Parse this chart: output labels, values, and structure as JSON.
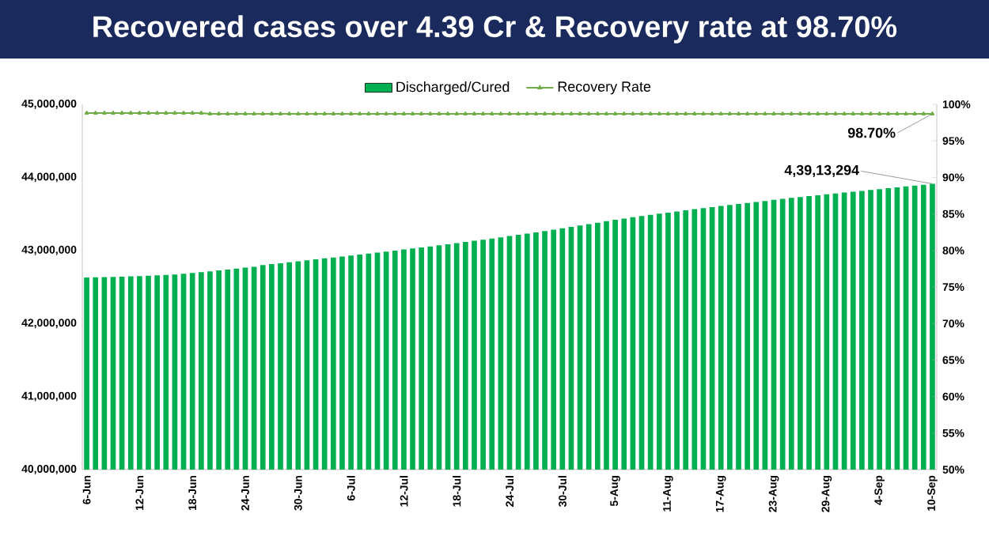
{
  "chart_data": {
    "type": "bar",
    "title": "Recovered cases over 4.39 Cr & Recovery rate at 98.70%",
    "categories": [
      "6-Jun",
      null,
      null,
      null,
      null,
      null,
      "12-Jun",
      null,
      null,
      null,
      null,
      null,
      "18-Jun",
      null,
      null,
      null,
      null,
      null,
      "24-Jun",
      null,
      null,
      null,
      null,
      null,
      "30-Jun",
      null,
      null,
      null,
      null,
      null,
      "6-Jul",
      null,
      null,
      null,
      null,
      null,
      "12-Jul",
      null,
      null,
      null,
      null,
      null,
      "18-Jul",
      null,
      null,
      null,
      null,
      null,
      "24-Jul",
      null,
      null,
      null,
      null,
      null,
      "30-Jul",
      null,
      null,
      null,
      null,
      null,
      "5-Aug",
      null,
      null,
      null,
      null,
      null,
      "11-Aug",
      null,
      null,
      null,
      null,
      null,
      "17-Aug",
      null,
      null,
      null,
      null,
      null,
      "23-Aug",
      null,
      null,
      null,
      null,
      null,
      "29-Aug",
      null,
      null,
      null,
      null,
      null,
      "4-Sep",
      null,
      null,
      null,
      null,
      null,
      "10-Sep"
    ],
    "series": [
      {
        "name": "Discharged/Cured",
        "color": "#00b050",
        "values": [
          42630000,
          42632000,
          42635000,
          42638000,
          42641000,
          42645000,
          42649000,
          42654000,
          42659000,
          42664000,
          42670000,
          42681000,
          42692000,
          42703000,
          42715000,
          42727000,
          42739000,
          42751000,
          42764000,
          42777000,
          42800000,
          42813000,
          42826000,
          42839000,
          42852000,
          42865000,
          42878000,
          42891000,
          42904000,
          42917000,
          42930000,
          42943000,
          42957000,
          42971000,
          42985000,
          42999000,
          43013000,
          43027000,
          43041000,
          43055000,
          43070000,
          43085000,
          43100000,
          43116000,
          43132000,
          43148000,
          43164000,
          43180000,
          43197000,
          43214000,
          43230000,
          43248000,
          43266000,
          43285000,
          43304000,
          43323000,
          43342000,
          43361000,
          43380000,
          43400000,
          43420000,
          43437000,
          43454000,
          43471000,
          43487000,
          43503000,
          43518000,
          43533000,
          43549000,
          43565000,
          43580000,
          43594000,
          43608000,
          43622000,
          43636000,
          43650000,
          43664000,
          43678000,
          43692000,
          43706000,
          43720000,
          43732000,
          43744000,
          43756000,
          43768000,
          43780000,
          43792000,
          43804000,
          43816000,
          43828000,
          43840000,
          43852000,
          43864000,
          43876000,
          43888000,
          43900000,
          43913294
        ],
        "value_labels": [
          null,
          null,
          null,
          null,
          null,
          null,
          null,
          null,
          null,
          null,
          null,
          null,
          null,
          null,
          null,
          null,
          null,
          null,
          null,
          null,
          null,
          null,
          null,
          null,
          null,
          null,
          null,
          null,
          null,
          null,
          null,
          null,
          null,
          null,
          null,
          null,
          null,
          null,
          null,
          null,
          null,
          null,
          null,
          null,
          null,
          null,
          null,
          null,
          null,
          null,
          null,
          null,
          null,
          null,
          null,
          null,
          null,
          null,
          null,
          null,
          null,
          null,
          null,
          null,
          null,
          null,
          null,
          null,
          null,
          null,
          null,
          null,
          null,
          null,
          null,
          null,
          null,
          null,
          null,
          null,
          null,
          null,
          null,
          null,
          null,
          null,
          null,
          null,
          null,
          null,
          null,
          null,
          null,
          null,
          null,
          null,
          "4,39,13,294"
        ]
      },
      {
        "name": "Recovery Rate",
        "type": "line",
        "axis": "y2",
        "color": "#70ad47",
        "marker": "triangle",
        "values": [
          98.8,
          98.8,
          98.8,
          98.8,
          98.8,
          98.8,
          98.8,
          98.8,
          98.8,
          98.8,
          98.8,
          98.8,
          98.8,
          98.8,
          98.7,
          98.7,
          98.7,
          98.7,
          98.7,
          98.7,
          98.7,
          98.7,
          98.7,
          98.7,
          98.7,
          98.7,
          98.7,
          98.7,
          98.7,
          98.7,
          98.7,
          98.7,
          98.7,
          98.7,
          98.7,
          98.7,
          98.7,
          98.7,
          98.7,
          98.7,
          98.7,
          98.7,
          98.7,
          98.7,
          98.7,
          98.7,
          98.7,
          98.7,
          98.7,
          98.7,
          98.7,
          98.7,
          98.7,
          98.7,
          98.7,
          98.7,
          98.7,
          98.7,
          98.7,
          98.7,
          98.7,
          98.7,
          98.7,
          98.7,
          98.7,
          98.7,
          98.7,
          98.7,
          98.7,
          98.7,
          98.7,
          98.7,
          98.7,
          98.7,
          98.7,
          98.7,
          98.7,
          98.7,
          98.7,
          98.7,
          98.7,
          98.7,
          98.7,
          98.7,
          98.7,
          98.7,
          98.7,
          98.7,
          98.7,
          98.7,
          98.7,
          98.7,
          98.7,
          98.7,
          98.7,
          98.7,
          98.7
        ],
        "value_labels": [
          null,
          null,
          null,
          null,
          null,
          null,
          null,
          null,
          null,
          null,
          null,
          null,
          null,
          null,
          null,
          null,
          null,
          null,
          null,
          null,
          null,
          null,
          null,
          null,
          null,
          null,
          null,
          null,
          null,
          null,
          null,
          null,
          null,
          null,
          null,
          null,
          null,
          null,
          null,
          null,
          null,
          null,
          null,
          null,
          null,
          null,
          null,
          null,
          null,
          null,
          null,
          null,
          null,
          null,
          null,
          null,
          null,
          null,
          null,
          null,
          null,
          null,
          null,
          null,
          null,
          null,
          null,
          null,
          null,
          null,
          null,
          null,
          null,
          null,
          null,
          null,
          null,
          null,
          null,
          null,
          null,
          null,
          null,
          null,
          null,
          null,
          null,
          null,
          null,
          null,
          null,
          null,
          null,
          null,
          null,
          null,
          "98.70%"
        ]
      }
    ],
    "ylim": [
      40000000,
      45000000
    ],
    "yticks": [
      {
        "value": 40000000,
        "label": "40,000,000"
      },
      {
        "value": 41000000,
        "label": "41,000,000"
      },
      {
        "value": 42000000,
        "label": "42,000,000"
      },
      {
        "value": 43000000,
        "label": "43,000,000"
      },
      {
        "value": 44000000,
        "label": "44,000,000"
      },
      {
        "value": 45000000,
        "label": "45,000,000"
      }
    ],
    "y2lim": [
      50,
      100
    ],
    "y2ticks": [
      {
        "value": 50,
        "label": "50%"
      },
      {
        "value": 55,
        "label": "55%"
      },
      {
        "value": 60,
        "label": "60%"
      },
      {
        "value": 65,
        "label": "65%"
      },
      {
        "value": 70,
        "label": "70%"
      },
      {
        "value": 75,
        "label": "75%"
      },
      {
        "value": 80,
        "label": "80%"
      },
      {
        "value": 85,
        "label": "85%"
      },
      {
        "value": 90,
        "label": "90%"
      },
      {
        "value": 95,
        "label": "95%"
      },
      {
        "value": 100,
        "label": "100%"
      }
    ],
    "legend": "top"
  }
}
